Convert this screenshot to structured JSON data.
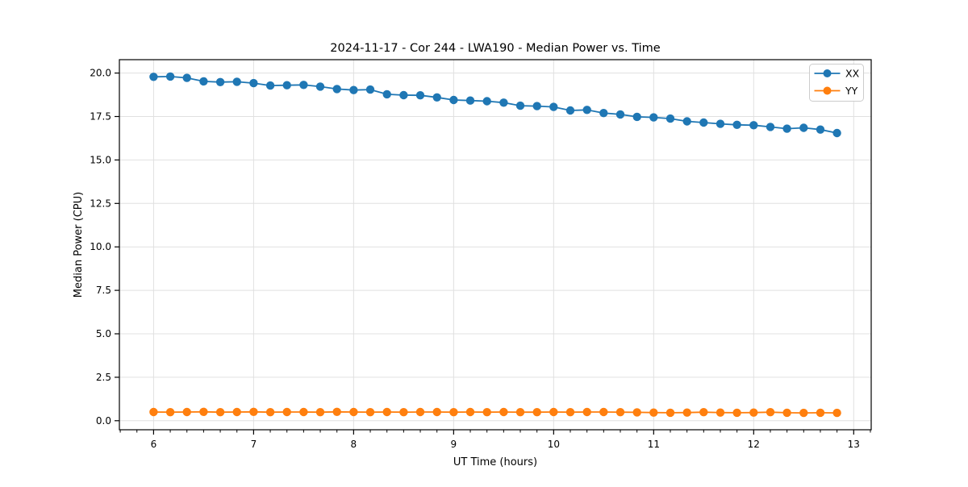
{
  "figure": {
    "background": "#ffffff"
  },
  "chart_data": {
    "type": "line",
    "title": "2024-11-17 - Cor 244 - LWA190 - Median Power vs. Time",
    "xlabel": "UT Time (hours)",
    "ylabel": "Median Power (CPU)",
    "xlim": [
      5.658,
      13.175
    ],
    "ylim": [
      -0.52,
      20.77
    ],
    "xticks": [
      6,
      7,
      8,
      9,
      10,
      11,
      12,
      13
    ],
    "xtick_labels": [
      "6",
      "7",
      "8",
      "9",
      "10",
      "11",
      "12",
      "13"
    ],
    "yticks": [
      0.0,
      2.5,
      5.0,
      7.5,
      10.0,
      12.5,
      15.0,
      17.5,
      20.0
    ],
    "ytick_labels": [
      "0.0",
      "2.5",
      "5.0",
      "7.5",
      "10.0",
      "12.5",
      "15.0",
      "17.5",
      "20.0"
    ],
    "xtick_minor_step": 0.1666667,
    "grid": true,
    "legend_position": "upper right",
    "x": [
      6.0,
      6.1667,
      6.3333,
      6.5,
      6.6667,
      6.8333,
      7.0,
      7.1667,
      7.3333,
      7.5,
      7.6667,
      7.8333,
      8.0,
      8.1667,
      8.3333,
      8.5,
      8.6667,
      8.8333,
      9.0,
      9.1667,
      9.3333,
      9.5,
      9.6667,
      9.8333,
      10.0,
      10.1667,
      10.3333,
      10.5,
      10.6667,
      10.8333,
      11.0,
      11.1667,
      11.3333,
      11.5,
      11.6667,
      11.8333,
      12.0,
      12.1667,
      12.3333,
      12.5,
      12.6667,
      12.8333
    ],
    "series": [
      {
        "name": "XX",
        "color": "#1f77b4",
        "values": [
          19.78,
          19.8,
          19.72,
          19.52,
          19.48,
          19.5,
          19.42,
          19.28,
          19.3,
          19.32,
          19.22,
          19.08,
          19.02,
          19.05,
          18.78,
          18.73,
          18.72,
          18.6,
          18.45,
          18.42,
          18.38,
          18.3,
          18.12,
          18.1,
          18.05,
          17.85,
          17.88,
          17.7,
          17.62,
          17.48,
          17.45,
          17.38,
          17.22,
          17.15,
          17.08,
          17.02,
          17.0,
          16.9,
          16.8,
          16.85,
          16.75,
          16.55
        ]
      },
      {
        "name": "YY",
        "color": "#ff7f0e",
        "values": [
          0.5,
          0.49,
          0.5,
          0.51,
          0.49,
          0.5,
          0.51,
          0.49,
          0.5,
          0.5,
          0.49,
          0.51,
          0.5,
          0.49,
          0.5,
          0.49,
          0.5,
          0.5,
          0.49,
          0.5,
          0.49,
          0.5,
          0.49,
          0.49,
          0.5,
          0.49,
          0.5,
          0.5,
          0.49,
          0.48,
          0.47,
          0.46,
          0.47,
          0.49,
          0.47,
          0.46,
          0.47,
          0.49,
          0.46,
          0.45,
          0.46,
          0.45
        ]
      }
    ],
    "colors": {
      "grid": "#e0e0e0",
      "spine": "#000000",
      "text": "#000000",
      "background": "#ffffff"
    }
  }
}
